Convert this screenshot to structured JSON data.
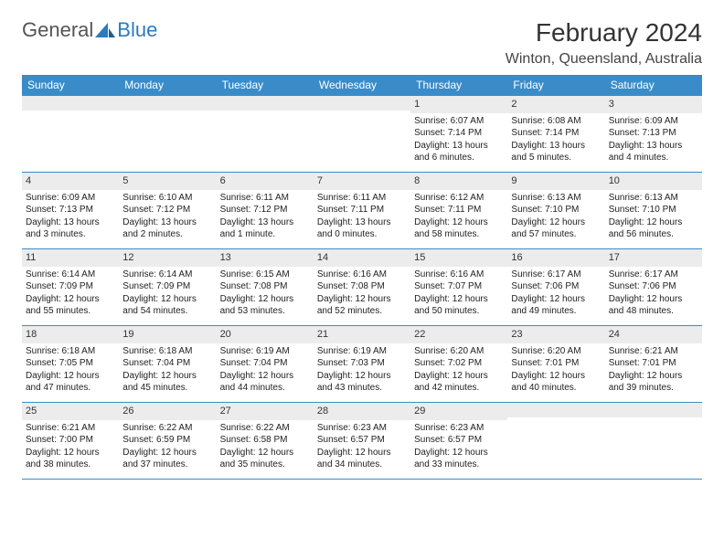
{
  "logo": {
    "general": "General",
    "blue": "Blue"
  },
  "title": "February 2024",
  "location": "Winton, Queensland, Australia",
  "colors": {
    "header_bg": "#3a8cc9",
    "header_text": "#ffffff",
    "daynum_bg": "#ececec",
    "border": "#3a8cc9",
    "logo_blue": "#2b7bbf",
    "logo_gray": "#555555"
  },
  "daynames": [
    "Sunday",
    "Monday",
    "Tuesday",
    "Wednesday",
    "Thursday",
    "Friday",
    "Saturday"
  ],
  "weeks": [
    [
      {
        "n": "",
        "sr": "",
        "ss": "",
        "dl": ""
      },
      {
        "n": "",
        "sr": "",
        "ss": "",
        "dl": ""
      },
      {
        "n": "",
        "sr": "",
        "ss": "",
        "dl": ""
      },
      {
        "n": "",
        "sr": "",
        "ss": "",
        "dl": ""
      },
      {
        "n": "1",
        "sr": "Sunrise: 6:07 AM",
        "ss": "Sunset: 7:14 PM",
        "dl": "Daylight: 13 hours and 6 minutes."
      },
      {
        "n": "2",
        "sr": "Sunrise: 6:08 AM",
        "ss": "Sunset: 7:14 PM",
        "dl": "Daylight: 13 hours and 5 minutes."
      },
      {
        "n": "3",
        "sr": "Sunrise: 6:09 AM",
        "ss": "Sunset: 7:13 PM",
        "dl": "Daylight: 13 hours and 4 minutes."
      }
    ],
    [
      {
        "n": "4",
        "sr": "Sunrise: 6:09 AM",
        "ss": "Sunset: 7:13 PM",
        "dl": "Daylight: 13 hours and 3 minutes."
      },
      {
        "n": "5",
        "sr": "Sunrise: 6:10 AM",
        "ss": "Sunset: 7:12 PM",
        "dl": "Daylight: 13 hours and 2 minutes."
      },
      {
        "n": "6",
        "sr": "Sunrise: 6:11 AM",
        "ss": "Sunset: 7:12 PM",
        "dl": "Daylight: 13 hours and 1 minute."
      },
      {
        "n": "7",
        "sr": "Sunrise: 6:11 AM",
        "ss": "Sunset: 7:11 PM",
        "dl": "Daylight: 13 hours and 0 minutes."
      },
      {
        "n": "8",
        "sr": "Sunrise: 6:12 AM",
        "ss": "Sunset: 7:11 PM",
        "dl": "Daylight: 12 hours and 58 minutes."
      },
      {
        "n": "9",
        "sr": "Sunrise: 6:13 AM",
        "ss": "Sunset: 7:10 PM",
        "dl": "Daylight: 12 hours and 57 minutes."
      },
      {
        "n": "10",
        "sr": "Sunrise: 6:13 AM",
        "ss": "Sunset: 7:10 PM",
        "dl": "Daylight: 12 hours and 56 minutes."
      }
    ],
    [
      {
        "n": "11",
        "sr": "Sunrise: 6:14 AM",
        "ss": "Sunset: 7:09 PM",
        "dl": "Daylight: 12 hours and 55 minutes."
      },
      {
        "n": "12",
        "sr": "Sunrise: 6:14 AM",
        "ss": "Sunset: 7:09 PM",
        "dl": "Daylight: 12 hours and 54 minutes."
      },
      {
        "n": "13",
        "sr": "Sunrise: 6:15 AM",
        "ss": "Sunset: 7:08 PM",
        "dl": "Daylight: 12 hours and 53 minutes."
      },
      {
        "n": "14",
        "sr": "Sunrise: 6:16 AM",
        "ss": "Sunset: 7:08 PM",
        "dl": "Daylight: 12 hours and 52 minutes."
      },
      {
        "n": "15",
        "sr": "Sunrise: 6:16 AM",
        "ss": "Sunset: 7:07 PM",
        "dl": "Daylight: 12 hours and 50 minutes."
      },
      {
        "n": "16",
        "sr": "Sunrise: 6:17 AM",
        "ss": "Sunset: 7:06 PM",
        "dl": "Daylight: 12 hours and 49 minutes."
      },
      {
        "n": "17",
        "sr": "Sunrise: 6:17 AM",
        "ss": "Sunset: 7:06 PM",
        "dl": "Daylight: 12 hours and 48 minutes."
      }
    ],
    [
      {
        "n": "18",
        "sr": "Sunrise: 6:18 AM",
        "ss": "Sunset: 7:05 PM",
        "dl": "Daylight: 12 hours and 47 minutes."
      },
      {
        "n": "19",
        "sr": "Sunrise: 6:18 AM",
        "ss": "Sunset: 7:04 PM",
        "dl": "Daylight: 12 hours and 45 minutes."
      },
      {
        "n": "20",
        "sr": "Sunrise: 6:19 AM",
        "ss": "Sunset: 7:04 PM",
        "dl": "Daylight: 12 hours and 44 minutes."
      },
      {
        "n": "21",
        "sr": "Sunrise: 6:19 AM",
        "ss": "Sunset: 7:03 PM",
        "dl": "Daylight: 12 hours and 43 minutes."
      },
      {
        "n": "22",
        "sr": "Sunrise: 6:20 AM",
        "ss": "Sunset: 7:02 PM",
        "dl": "Daylight: 12 hours and 42 minutes."
      },
      {
        "n": "23",
        "sr": "Sunrise: 6:20 AM",
        "ss": "Sunset: 7:01 PM",
        "dl": "Daylight: 12 hours and 40 minutes."
      },
      {
        "n": "24",
        "sr": "Sunrise: 6:21 AM",
        "ss": "Sunset: 7:01 PM",
        "dl": "Daylight: 12 hours and 39 minutes."
      }
    ],
    [
      {
        "n": "25",
        "sr": "Sunrise: 6:21 AM",
        "ss": "Sunset: 7:00 PM",
        "dl": "Daylight: 12 hours and 38 minutes."
      },
      {
        "n": "26",
        "sr": "Sunrise: 6:22 AM",
        "ss": "Sunset: 6:59 PM",
        "dl": "Daylight: 12 hours and 37 minutes."
      },
      {
        "n": "27",
        "sr": "Sunrise: 6:22 AM",
        "ss": "Sunset: 6:58 PM",
        "dl": "Daylight: 12 hours and 35 minutes."
      },
      {
        "n": "28",
        "sr": "Sunrise: 6:23 AM",
        "ss": "Sunset: 6:57 PM",
        "dl": "Daylight: 12 hours and 34 minutes."
      },
      {
        "n": "29",
        "sr": "Sunrise: 6:23 AM",
        "ss": "Sunset: 6:57 PM",
        "dl": "Daylight: 12 hours and 33 minutes."
      },
      {
        "n": "",
        "sr": "",
        "ss": "",
        "dl": ""
      },
      {
        "n": "",
        "sr": "",
        "ss": "",
        "dl": ""
      }
    ]
  ]
}
